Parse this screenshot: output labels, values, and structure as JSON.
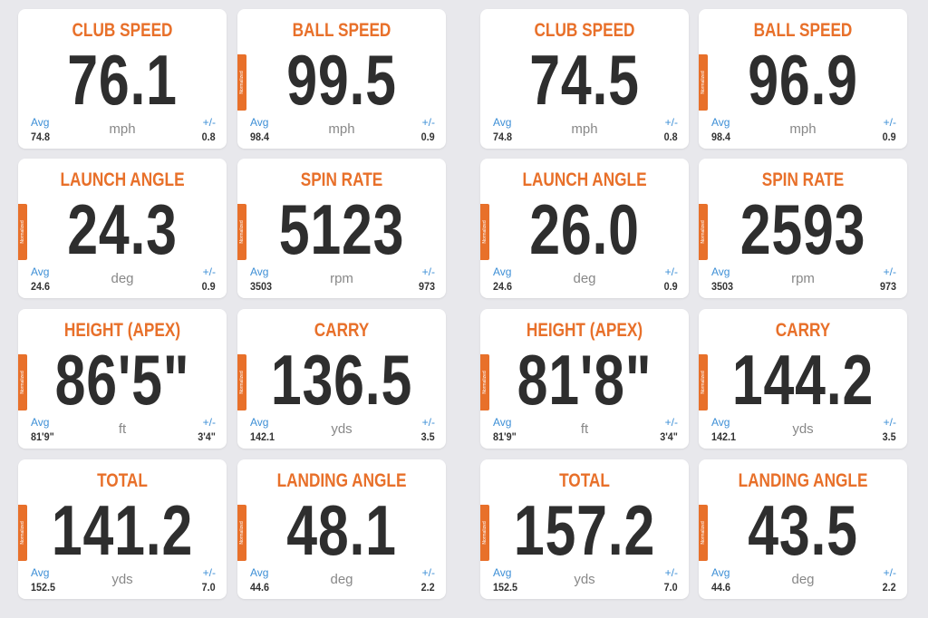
{
  "labels": {
    "avg": "Avg",
    "pm": "+/-",
    "tab": "Normalized"
  },
  "panels": [
    {
      "cards": [
        {
          "title": "CLUB SPEED",
          "value": "76.1",
          "unit": "mph",
          "avg": "74.8",
          "pm": "0.8",
          "normalized": false
        },
        {
          "title": "BALL SPEED",
          "value": "99.5",
          "unit": "mph",
          "avg": "98.4",
          "pm": "0.9",
          "normalized": true
        },
        {
          "title": "LAUNCH ANGLE",
          "value": "24.3",
          "unit": "deg",
          "avg": "24.6",
          "pm": "0.9",
          "normalized": true
        },
        {
          "title": "SPIN RATE",
          "value": "5123",
          "unit": "rpm",
          "avg": "3503",
          "pm": "973",
          "normalized": true
        },
        {
          "title": "HEIGHT (APEX)",
          "value": "86'5\"",
          "unit": "ft",
          "avg": "81'9\"",
          "pm": "3'4\"",
          "normalized": true
        },
        {
          "title": "CARRY",
          "value": "136.5",
          "unit": "yds",
          "avg": "142.1",
          "pm": "3.5",
          "normalized": true
        },
        {
          "title": "TOTAL",
          "value": "141.2",
          "unit": "yds",
          "avg": "152.5",
          "pm": "7.0",
          "normalized": true
        },
        {
          "title": "LANDING ANGLE",
          "value": "48.1",
          "unit": "deg",
          "avg": "44.6",
          "pm": "2.2",
          "normalized": true
        }
      ]
    },
    {
      "cards": [
        {
          "title": "CLUB SPEED",
          "value": "74.5",
          "unit": "mph",
          "avg": "74.8",
          "pm": "0.8",
          "normalized": false
        },
        {
          "title": "BALL SPEED",
          "value": "96.9",
          "unit": "mph",
          "avg": "98.4",
          "pm": "0.9",
          "normalized": true
        },
        {
          "title": "LAUNCH ANGLE",
          "value": "26.0",
          "unit": "deg",
          "avg": "24.6",
          "pm": "0.9",
          "normalized": true
        },
        {
          "title": "SPIN RATE",
          "value": "2593",
          "unit": "rpm",
          "avg": "3503",
          "pm": "973",
          "normalized": true
        },
        {
          "title": "HEIGHT (APEX)",
          "value": "81'8\"",
          "unit": "ft",
          "avg": "81'9\"",
          "pm": "3'4\"",
          "normalized": true
        },
        {
          "title": "CARRY",
          "value": "144.2",
          "unit": "yds",
          "avg": "142.1",
          "pm": "3.5",
          "normalized": true
        },
        {
          "title": "TOTAL",
          "value": "157.2",
          "unit": "yds",
          "avg": "152.5",
          "pm": "7.0",
          "normalized": true
        },
        {
          "title": "LANDING ANGLE",
          "value": "43.5",
          "unit": "deg",
          "avg": "44.6",
          "pm": "2.2",
          "normalized": true
        }
      ]
    }
  ]
}
